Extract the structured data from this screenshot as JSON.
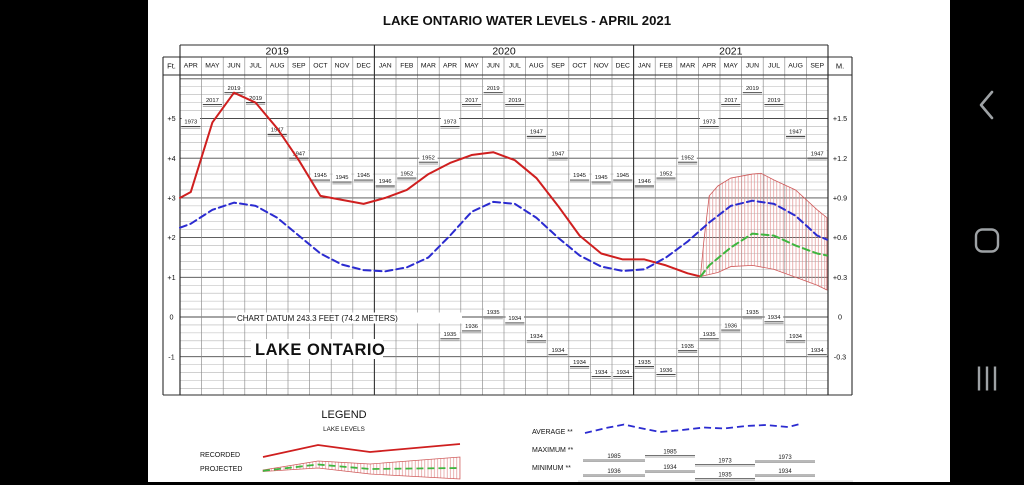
{
  "title": "LAKE ONTARIO WATER LEVELS - APRIL 2021",
  "chart_data": {
    "type": "line",
    "title": "LAKE ONTARIO WATER LEVELS - APRIL 2021",
    "unit_left": "Ft.",
    "unit_right": "M.",
    "datum_note": "CHART DATUM  243.3 FEET (74.2 METERS)",
    "lake_name": "LAKE ONTARIO",
    "left_ticks": [
      "+5",
      "+4",
      "+3",
      "+2",
      "+1",
      "0",
      "-1"
    ],
    "right_ticks": [
      "+1.5",
      "+1.2",
      "+0.9",
      "+0.6",
      "+0.3",
      "0",
      "-0.3"
    ],
    "tick_values": [
      5,
      4,
      3,
      2,
      1,
      0,
      -1
    ],
    "ylim_ft": [
      -2,
      6.1
    ],
    "year_groups": [
      {
        "year": "2019",
        "months": [
          "APR",
          "MAY",
          "JUN",
          "JUL",
          "AUG",
          "SEP",
          "OCT",
          "NOV",
          "DEC"
        ]
      },
      {
        "year": "2020",
        "months": [
          "JAN",
          "FEB",
          "MAR",
          "APR",
          "MAY",
          "JUN",
          "JUL",
          "AUG",
          "SEP",
          "OCT",
          "NOV",
          "DEC"
        ]
      },
      {
        "year": "2021",
        "months": [
          "JAN",
          "FEB",
          "MAR",
          "APR",
          "MAY",
          "JUN",
          "JUL",
          "AUG",
          "SEP"
        ]
      }
    ],
    "series": [
      {
        "name": "RECORDED",
        "color": "#cf1f1f",
        "dash": "none",
        "points": [
          [
            -0.5,
            3.0
          ],
          [
            0,
            3.15
          ],
          [
            1,
            4.9
          ],
          [
            2,
            5.65
          ],
          [
            3,
            5.4
          ],
          [
            4,
            4.75
          ],
          [
            5,
            3.95
          ],
          [
            6,
            3.05
          ],
          [
            7,
            2.95
          ],
          [
            8,
            2.85
          ],
          [
            9,
            3.0
          ],
          [
            10,
            3.2
          ],
          [
            11,
            3.6
          ],
          [
            12,
            3.88
          ],
          [
            13,
            4.08
          ],
          [
            14,
            4.15
          ],
          [
            15,
            3.95
          ],
          [
            16,
            3.5
          ],
          [
            17,
            2.8
          ],
          [
            18,
            2.05
          ],
          [
            19,
            1.6
          ],
          [
            20,
            1.45
          ],
          [
            21,
            1.45
          ],
          [
            22,
            1.3
          ],
          [
            23,
            1.1
          ],
          [
            23.6,
            1.02
          ]
        ]
      },
      {
        "name": "AVERAGE",
        "color": "#2b2bd0",
        "dash": "7,4",
        "points": [
          [
            -0.5,
            2.25
          ],
          [
            0,
            2.35
          ],
          [
            1,
            2.7
          ],
          [
            2,
            2.88
          ],
          [
            3,
            2.8
          ],
          [
            4,
            2.5
          ],
          [
            5,
            2.05
          ],
          [
            6,
            1.6
          ],
          [
            7,
            1.32
          ],
          [
            8,
            1.18
          ],
          [
            9,
            1.15
          ],
          [
            10,
            1.25
          ],
          [
            11,
            1.5
          ],
          [
            12,
            2.05
          ],
          [
            13,
            2.65
          ],
          [
            14,
            2.9
          ],
          [
            15,
            2.85
          ],
          [
            16,
            2.5
          ],
          [
            17,
            2.0
          ],
          [
            18,
            1.55
          ],
          [
            19,
            1.27
          ],
          [
            20,
            1.16
          ],
          [
            21,
            1.2
          ],
          [
            22,
            1.5
          ],
          [
            23,
            1.9
          ],
          [
            24,
            2.38
          ],
          [
            25,
            2.8
          ],
          [
            26,
            2.93
          ],
          [
            27,
            2.85
          ],
          [
            28,
            2.55
          ],
          [
            29,
            2.05
          ],
          [
            29.45,
            1.95
          ]
        ]
      },
      {
        "name": "PROJECTED",
        "color": "#3fb53f",
        "dash": "7,4",
        "points": [
          [
            23.6,
            1.02
          ],
          [
            24,
            1.3
          ],
          [
            25,
            1.75
          ],
          [
            26,
            2.1
          ],
          [
            27,
            2.05
          ],
          [
            28,
            1.8
          ],
          [
            29,
            1.6
          ],
          [
            29.45,
            1.55
          ]
        ]
      }
    ],
    "projected_band": {
      "hatch_color": "#e09090",
      "edge_color": "#cf5a5a",
      "upper": [
        [
          23.6,
          1.05
        ],
        [
          23.75,
          1.9
        ],
        [
          24,
          3.05
        ],
        [
          24.4,
          3.3
        ],
        [
          25,
          3.5
        ],
        [
          26,
          3.6
        ],
        [
          26.4,
          3.62
        ],
        [
          27,
          3.45
        ],
        [
          28,
          3.2
        ],
        [
          29,
          2.7
        ],
        [
          29.45,
          2.5
        ]
      ],
      "lower": [
        [
          29.45,
          0.68
        ],
        [
          29,
          0.8
        ],
        [
          28,
          1.0
        ],
        [
          27,
          1.2
        ],
        [
          26,
          1.3
        ],
        [
          25,
          1.27
        ],
        [
          24.4,
          1.12
        ],
        [
          24,
          1.07
        ],
        [
          23.6,
          1.02
        ]
      ]
    },
    "maximums": [
      {
        "i": 0,
        "year": "1973",
        "v": 4.8
      },
      {
        "i": 1,
        "year": "2017",
        "v": 5.35
      },
      {
        "i": 2,
        "year": "2019",
        "v": 5.65
      },
      {
        "i": 3,
        "year": "2019",
        "v": 5.4
      },
      {
        "i": 4,
        "year": "1947",
        "v": 4.6
      },
      {
        "i": 5,
        "year": "1947",
        "v": 4.0
      },
      {
        "i": 6,
        "year": "1945",
        "v": 3.45
      },
      {
        "i": 7,
        "year": "1945",
        "v": 3.4
      },
      {
        "i": 8,
        "year": "1945",
        "v": 3.45
      },
      {
        "i": 9,
        "year": "1946",
        "v": 3.3
      },
      {
        "i": 10,
        "year": "1952",
        "v": 3.5
      },
      {
        "i": 11,
        "year": "1952",
        "v": 3.9
      },
      {
        "i": 12,
        "year": "1973",
        "v": 4.8
      },
      {
        "i": 13,
        "year": "2017",
        "v": 5.35
      },
      {
        "i": 14,
        "year": "2019",
        "v": 5.65
      },
      {
        "i": 15,
        "year": "2019",
        "v": 5.35
      },
      {
        "i": 16,
        "year": "1947",
        "v": 4.55
      },
      {
        "i": 17,
        "year": "1947",
        "v": 4.0
      },
      {
        "i": 18,
        "year": "1945",
        "v": 3.45
      },
      {
        "i": 19,
        "year": "1945",
        "v": 3.4
      },
      {
        "i": 20,
        "year": "1945",
        "v": 3.45
      },
      {
        "i": 21,
        "year": "1946",
        "v": 3.3
      },
      {
        "i": 22,
        "year": "1952",
        "v": 3.5
      },
      {
        "i": 23,
        "year": "1952",
        "v": 3.9
      },
      {
        "i": 24,
        "year": "1973",
        "v": 4.8
      },
      {
        "i": 25,
        "year": "2017",
        "v": 5.35
      },
      {
        "i": 26,
        "year": "2019",
        "v": 5.65
      },
      {
        "i": 27,
        "year": "2019",
        "v": 5.35
      },
      {
        "i": 28,
        "year": "1947",
        "v": 4.55
      },
      {
        "i": 29,
        "year": "1947",
        "v": 4.0
      }
    ],
    "minimums": [
      {
        "i": 12,
        "year": "1935",
        "v": -0.55
      },
      {
        "i": 13,
        "year": "1936",
        "v": -0.35
      },
      {
        "i": 14,
        "year": "1935",
        "v": 0.0
      },
      {
        "i": 15,
        "year": "1934",
        "v": -0.15
      },
      {
        "i": 16,
        "year": "1934",
        "v": -0.6
      },
      {
        "i": 17,
        "year": "1934",
        "v": -0.95
      },
      {
        "i": 18,
        "year": "1934",
        "v": -1.25
      },
      {
        "i": 19,
        "year": "1934",
        "v": -1.5
      },
      {
        "i": 20,
        "year": "1934",
        "v": -1.5
      },
      {
        "i": 21,
        "year": "1935",
        "v": -1.25
      },
      {
        "i": 22,
        "year": "1936",
        "v": -1.45
      },
      {
        "i": 23,
        "year": "1935",
        "v": -0.85
      },
      {
        "i": 24,
        "year": "1935",
        "v": -0.55
      },
      {
        "i": 25,
        "year": "1936",
        "v": -0.33
      },
      {
        "i": 26,
        "year": "1935",
        "v": 0.0
      },
      {
        "i": 27,
        "year": "1934",
        "v": -0.12
      },
      {
        "i": 28,
        "year": "1934",
        "v": -0.6
      },
      {
        "i": 29,
        "year": "1934",
        "v": -0.95
      }
    ]
  },
  "legend": {
    "title": "LEGEND",
    "subtitle": "LAKE LEVELS",
    "recorded_label": "RECORDED",
    "projected_label": "PROJECTED",
    "average_label": "AVERAGE **",
    "maximum_label": "MAXIMUM **",
    "minimum_label": "MINIMUM **",
    "maximum_years": [
      "1985",
      "1985",
      "1973",
      "1973"
    ],
    "minimum_years": [
      "1936",
      "1934",
      "1935",
      "1934"
    ]
  }
}
